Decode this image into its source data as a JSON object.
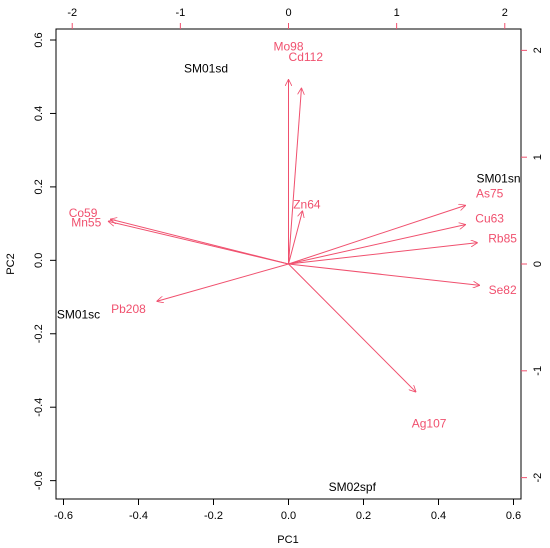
{
  "chart_data": {
    "type": "scatter",
    "subtype": "biplot",
    "title": "",
    "xlabel": "PC1",
    "ylabel": "PC2",
    "xlim": [
      -0.62,
      0.62
    ],
    "ylim": [
      -0.65,
      0.63
    ],
    "x_ticks": [
      "-0.6",
      "-0.4",
      "-0.2",
      "0.0",
      "0.2",
      "0.4",
      "0.6"
    ],
    "y_ticks": [
      "-0.6",
      "-0.4",
      "-0.2",
      "0.0",
      "0.2",
      "0.4",
      "0.6"
    ],
    "top_axis": {
      "range": [
        -2.15,
        2.15
      ],
      "ticks": [
        "-2",
        "-1",
        "0",
        "1",
        "2"
      ]
    },
    "right_axis": {
      "range": [
        -2.2,
        2.2
      ],
      "ticks": [
        "-2",
        "-1",
        "0",
        "1",
        "2"
      ]
    },
    "observations": [
      {
        "name": "SM01sd",
        "x": -0.22,
        "y": 0.52
      },
      {
        "name": "SM01sn",
        "x": 0.56,
        "y": 0.22
      },
      {
        "name": "SM01sc",
        "x": -0.56,
        "y": -0.15
      },
      {
        "name": "SM02spf",
        "x": 0.17,
        "y": -0.62
      }
    ],
    "variables": [
      {
        "name": "Mo98",
        "x": 0.0,
        "y": 1.73,
        "lx": 0.0,
        "ly": 2.03
      },
      {
        "name": "Cd112",
        "x": 0.12,
        "y": 1.65,
        "lx": 0.16,
        "ly": 1.93
      },
      {
        "name": "Zn64",
        "x": 0.13,
        "y": 0.5,
        "lx": 0.17,
        "ly": 0.55
      },
      {
        "name": "Co59",
        "x": -1.65,
        "y": 0.42,
        "lx": -1.9,
        "ly": 0.47
      },
      {
        "name": "Mn55",
        "x": -1.67,
        "y": 0.4,
        "lx": -1.87,
        "ly": 0.38
      },
      {
        "name": "Pb208",
        "x": -1.22,
        "y": -0.35,
        "lx": -1.48,
        "ly": -0.43
      },
      {
        "name": "As75",
        "x": 1.64,
        "y": 0.55,
        "lx": 1.86,
        "ly": 0.65
      },
      {
        "name": "Cu63",
        "x": 1.64,
        "y": 0.37,
        "lx": 1.86,
        "ly": 0.42
      },
      {
        "name": "Rb85",
        "x": 1.75,
        "y": 0.2,
        "lx": 1.98,
        "ly": 0.23
      },
      {
        "name": "Se82",
        "x": 1.77,
        "y": -0.2,
        "lx": 1.98,
        "ly": -0.25
      },
      {
        "name": "Ag107",
        "x": 1.18,
        "y": -1.2,
        "lx": 1.3,
        "ly": -1.5
      }
    ],
    "colors": {
      "variables": "#f0506e",
      "observations": "#000000",
      "axes": "#000000"
    }
  }
}
